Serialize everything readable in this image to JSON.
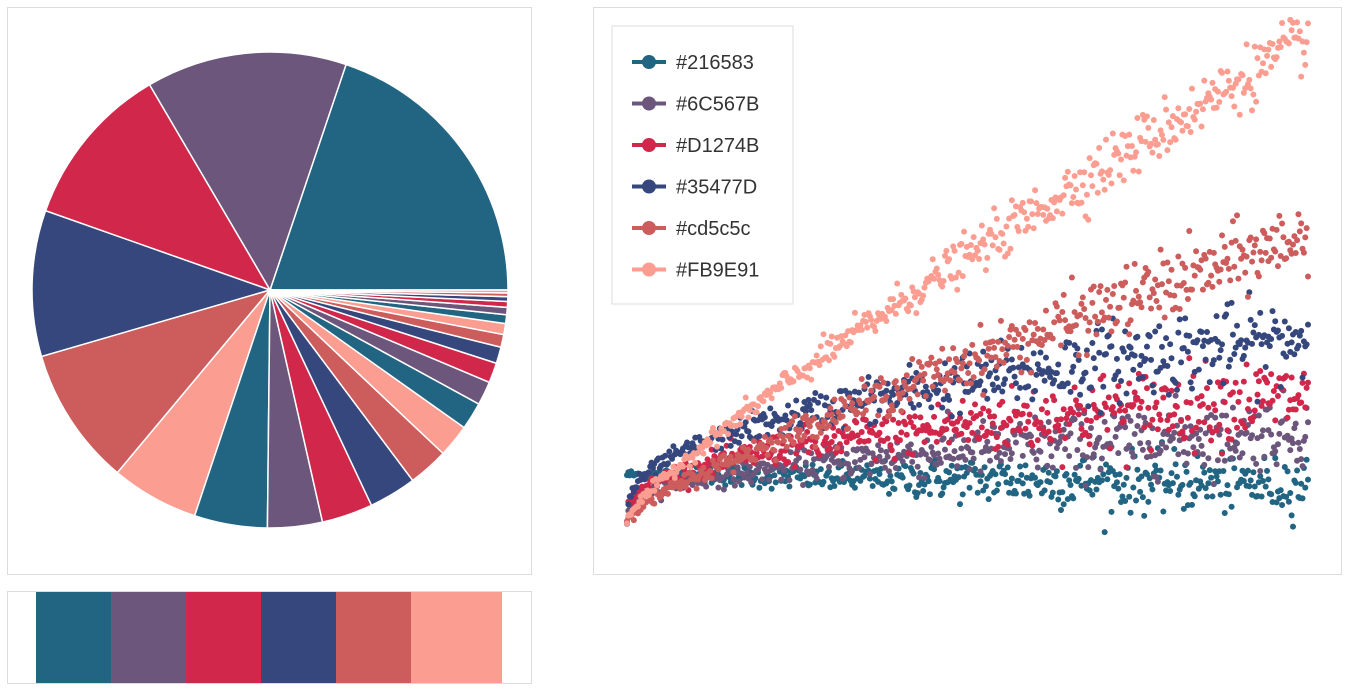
{
  "palette": [
    "#216583",
    "#6C567B",
    "#D1274B",
    "#35477D",
    "#cd5c5c",
    "#FB9E91"
  ],
  "chart_data": [
    {
      "type": "pie",
      "title": "",
      "series": [
        {
          "name": "",
          "values": [
            80,
            55,
            45,
            40,
            38,
            24,
            20,
            15,
            14,
            13,
            11,
            9,
            7.5,
            6.5,
            5.5,
            4.5,
            3.5,
            3,
            2.4,
            2,
            1.6,
            1.3,
            1,
            0.8
          ],
          "colors": [
            "#216583",
            "#6C567B",
            "#D1274B",
            "#35477D",
            "#cd5c5c",
            "#FB9E91",
            "#216583",
            "#6C567B",
            "#D1274B",
            "#35477D",
            "#cd5c5c",
            "#FB9E91",
            "#216583",
            "#6C567B",
            "#D1274B",
            "#35477D",
            "#cd5c5c",
            "#FB9E91",
            "#216583",
            "#6C567B",
            "#D1274B",
            "#35477D",
            "#cd5c5c",
            "#FB9E91"
          ]
        }
      ]
    },
    {
      "type": "table",
      "title": "",
      "categories": [
        "#216583",
        "#6C567B",
        "#D1274B",
        "#35477D",
        "#cd5c5c",
        "#FB9E91"
      ],
      "colors": [
        "#216583",
        "#6C567B",
        "#D1274B",
        "#35477D",
        "#cd5c5c",
        "#FB9E91"
      ]
    },
    {
      "type": "scatter",
      "title": "",
      "xlabel": "",
      "ylabel": "",
      "x_range": [
        0,
        1
      ],
      "y_range": [
        -0.05,
        1
      ],
      "grid": false,
      "axes_visible": false,
      "legend_position": "top-left",
      "legend_markers": "line-with-dot",
      "points_per_series": 500,
      "series": [
        {
          "name": "#216583",
          "color": "#216583",
          "start": 0.1,
          "trend_end": 0.1,
          "spread": 0.03,
          "shape": "flat-slight-dip"
        },
        {
          "name": "#6C567B",
          "color": "#6C567B",
          "start": 0.0,
          "trend_end": 0.13,
          "spread": 0.035,
          "shape": "concave"
        },
        {
          "name": "#D1274B",
          "color": "#D1274B",
          "start": 0.0,
          "trend_end": 0.2,
          "spread": 0.04,
          "shape": "concave"
        },
        {
          "name": "#35477D",
          "color": "#35477D",
          "start": 0.0,
          "trend_end": 0.32,
          "spread": 0.04,
          "shape": "concave"
        },
        {
          "name": "#cd5c5c",
          "color": "#cd5c5c",
          "start": 0.0,
          "trend_end": 0.55,
          "spread": 0.035,
          "shape": "near-linear"
        },
        {
          "name": "#FB9E91",
          "color": "#FB9E91",
          "start": 0.0,
          "trend_end": 0.95,
          "spread": 0.03,
          "shape": "near-linear"
        }
      ]
    }
  ]
}
